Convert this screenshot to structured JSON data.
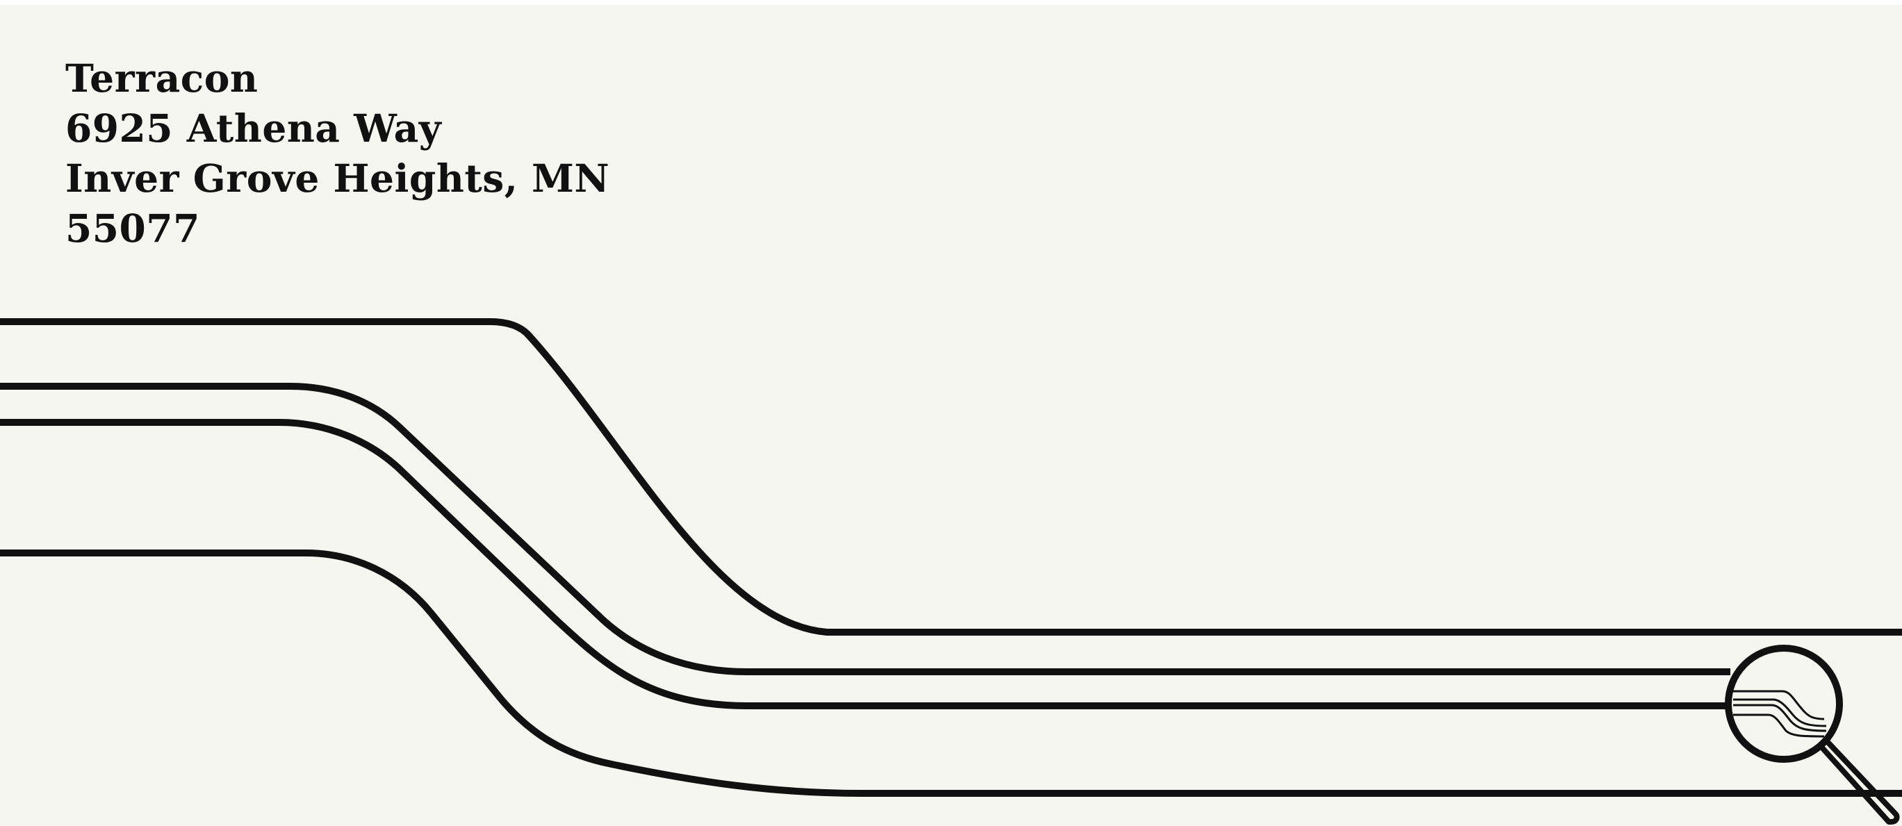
{
  "return_address": {
    "company": "Terracon",
    "street": "6925 Athena Way",
    "city_state": "Inver Grove Heights, MN",
    "zip": "55077"
  },
  "artwork": {
    "line_color": "#111111",
    "background_color": "#f6f6f0",
    "icon": "magnifying-glass-icon"
  }
}
